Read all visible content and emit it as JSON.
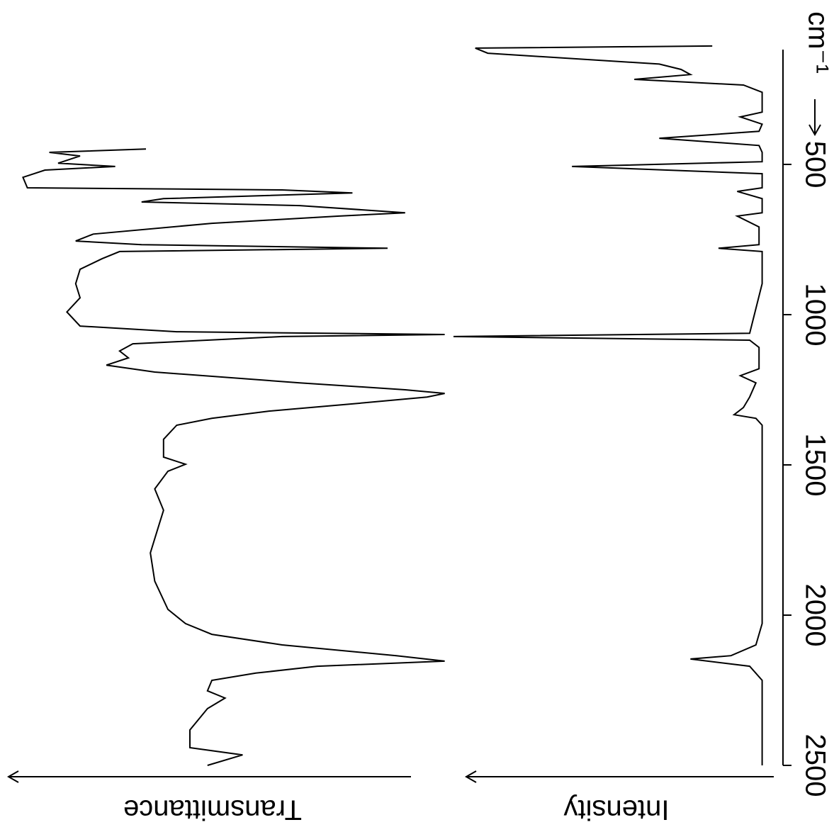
{
  "chart_data": [
    {
      "type": "line",
      "ylabel": "Transmittance",
      "color": "#000000",
      "xlim": [
        2500,
        118
      ],
      "ylim": [
        0,
        100
      ],
      "x": [
        2500,
        2465,
        2441,
        2382,
        2311,
        2276,
        2252,
        2217,
        2193,
        2170,
        2153,
        2135,
        2099,
        2064,
        2028,
        1981,
        1887,
        1793,
        1698,
        1651,
        1580,
        1521,
        1498,
        1474,
        1415,
        1368,
        1345,
        1321,
        1297,
        1274,
        1262,
        1250,
        1227,
        1191,
        1168,
        1144,
        1121,
        1097,
        1073,
        1066,
        1057,
        1038,
        991,
        944,
        897,
        849,
        814,
        790,
        779,
        767,
        755,
        732,
        696,
        672,
        661,
        637,
        625,
        614,
        595,
        585,
        578,
        543,
        519,
        507,
        496,
        472,
        460,
        449
      ],
      "values": [
        56,
        48,
        60,
        60,
        56,
        52,
        56,
        55,
        45,
        31,
        2,
        13,
        39,
        55,
        61,
        65,
        68,
        69,
        67,
        66,
        68,
        65,
        61,
        66,
        66,
        63,
        55,
        42,
        23,
        6,
        2,
        11,
        35,
        68,
        79,
        74,
        76,
        73,
        39,
        2,
        63,
        85,
        88,
        85,
        86,
        85,
        80,
        76,
        15,
        71,
        86,
        82,
        55,
        26,
        11,
        35,
        71,
        66,
        23,
        39,
        97,
        98,
        93,
        77,
        90,
        85,
        92,
        70
      ]
    },
    {
      "type": "line",
      "ylabel": "Intensity",
      "xlabel": "cm⁻¹",
      "color": "#000000",
      "xlim": [
        2500,
        118
      ],
      "ylim": [
        0,
        100
      ],
      "xticks": [
        2500,
        2000,
        1500,
        1000,
        500
      ],
      "x": [
        2500,
        2217,
        2170,
        2146,
        2135,
        2099,
        2028,
        1368,
        1345,
        1333,
        1309,
        1274,
        1227,
        1203,
        1180,
        1109,
        1085,
        1073,
        1062,
        897,
        790,
        779,
        767,
        708,
        672,
        661,
        614,
        590,
        578,
        531,
        507,
        491,
        460,
        437,
        413,
        390,
        366,
        342,
        326,
        260,
        236,
        217,
        201,
        184,
        166,
        130,
        113,
        106
      ],
      "values": [
        1,
        1,
        5,
        24,
        11,
        3,
        1,
        1,
        3,
        10,
        7,
        5,
        3,
        8,
        2,
        2,
        5,
        100,
        5,
        1,
        1,
        15,
        2,
        2,
        9,
        1,
        1,
        9,
        1,
        1,
        62,
        1,
        1,
        2,
        34,
        2,
        1,
        8,
        1,
        1,
        7,
        42,
        24,
        27,
        34,
        89,
        93,
        17
      ]
    }
  ]
}
